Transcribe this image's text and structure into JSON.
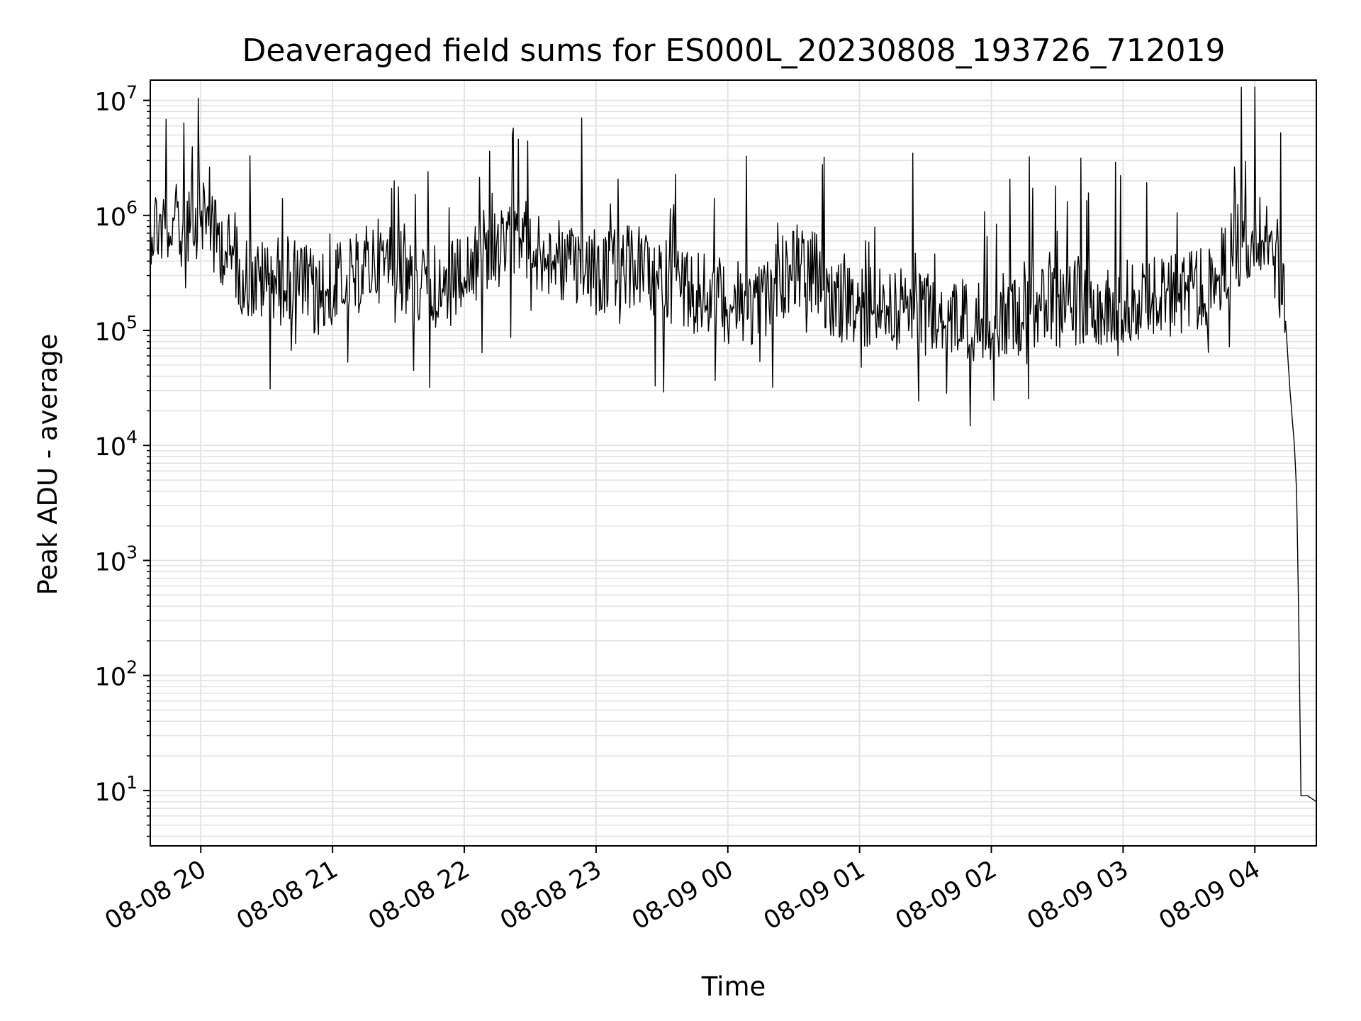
{
  "chart_data": {
    "type": "line",
    "title": "Deaveraged field sums for ES000L_20230808_193726_712019",
    "xlabel": "Time",
    "ylabel": "Peak ADU - average",
    "yscale": "log",
    "ylim": [
      3.3,
      15000000
    ],
    "xlim": [
      "2023-08-08 19:37",
      "2023-08-09 04:28"
    ],
    "grid": true,
    "line_color": "#000000",
    "grid_color": "#e3e3e3",
    "x_ticks": [
      {
        "value": "2023-08-08 20:00",
        "label": "08-08 20"
      },
      {
        "value": "2023-08-08 21:00",
        "label": "08-08 21"
      },
      {
        "value": "2023-08-08 22:00",
        "label": "08-08 22"
      },
      {
        "value": "2023-08-08 23:00",
        "label": "08-08 23"
      },
      {
        "value": "2023-08-09 00:00",
        "label": "08-09 00"
      },
      {
        "value": "2023-08-09 01:00",
        "label": "08-09 01"
      },
      {
        "value": "2023-08-09 02:00",
        "label": "08-09 02"
      },
      {
        "value": "2023-08-09 03:00",
        "label": "08-09 03"
      },
      {
        "value": "2023-08-09 04:00",
        "label": "08-09 04"
      }
    ],
    "y_ticks": [
      {
        "value": 10,
        "base": "10",
        "exp": "1"
      },
      {
        "value": 100,
        "base": "10",
        "exp": "2"
      },
      {
        "value": 1000,
        "base": "10",
        "exp": "3"
      },
      {
        "value": 10000,
        "base": "10",
        "exp": "4"
      },
      {
        "value": 100000,
        "base": "10",
        "exp": "5"
      },
      {
        "value": 1000000,
        "base": "10",
        "exp": "6"
      },
      {
        "value": 10000000,
        "base": "10",
        "exp": "7"
      }
    ],
    "series": [
      {
        "points": [
          [
            "2023-08-08 19:37",
            880000
          ],
          [
            "2023-08-08 19:41",
            820000
          ],
          [
            "2023-08-08 19:45",
            750000
          ],
          [
            "2023-08-08 19:50",
            820000
          ],
          [
            "2023-08-08 19:55",
            950000
          ],
          [
            "2023-08-08 20:00",
            1100000
          ],
          [
            "2023-08-08 20:06",
            750000
          ],
          [
            "2023-08-08 20:12",
            480000
          ],
          [
            "2023-08-08 20:18",
            330000
          ],
          [
            "2023-08-08 20:24",
            260000
          ],
          [
            "2023-08-08 20:30",
            270000
          ],
          [
            "2023-08-08 20:36",
            300000
          ],
          [
            "2023-08-08 20:42",
            290000
          ],
          [
            "2023-08-08 20:48",
            240000
          ],
          [
            "2023-08-08 20:54",
            200000
          ],
          [
            "2023-08-08 21:00",
            230000
          ],
          [
            "2023-08-08 21:10",
            300000
          ],
          [
            "2023-08-08 21:20",
            420000
          ],
          [
            "2023-08-08 21:30",
            300000
          ],
          [
            "2023-08-08 21:40",
            250000
          ],
          [
            "2023-08-08 21:50",
            230000
          ],
          [
            "2023-08-08 22:00",
            300000
          ],
          [
            "2023-08-08 22:10",
            420000
          ],
          [
            "2023-08-08 22:20",
            520000
          ],
          [
            "2023-08-08 22:30",
            480000
          ],
          [
            "2023-08-08 22:40",
            420000
          ],
          [
            "2023-08-08 22:50",
            320000
          ],
          [
            "2023-08-08 23:00",
            300000
          ],
          [
            "2023-08-08 23:10",
            340000
          ],
          [
            "2023-08-08 23:20",
            360000
          ],
          [
            "2023-08-08 23:30",
            280000
          ],
          [
            "2023-08-08 23:40",
            240000
          ],
          [
            "2023-08-08 23:50",
            200000
          ],
          [
            "2023-08-09 00:00",
            180000
          ],
          [
            "2023-08-09 00:10",
            160000
          ],
          [
            "2023-08-09 00:20",
            220000
          ],
          [
            "2023-08-09 00:30",
            380000
          ],
          [
            "2023-08-09 00:40",
            300000
          ],
          [
            "2023-08-09 00:50",
            170000
          ],
          [
            "2023-08-09 01:00",
            150000
          ],
          [
            "2023-08-09 01:10",
            160000
          ],
          [
            "2023-08-09 01:20",
            150000
          ],
          [
            "2023-08-09 01:30",
            140000
          ],
          [
            "2023-08-09 01:40",
            130000
          ],
          [
            "2023-08-09 01:50",
            125000
          ],
          [
            "2023-08-09 02:00",
            130000
          ],
          [
            "2023-08-09 02:10",
            140000
          ],
          [
            "2023-08-09 02:20",
            150000
          ],
          [
            "2023-08-09 02:30",
            160000
          ],
          [
            "2023-08-09 02:40",
            170000
          ],
          [
            "2023-08-09 02:50",
            175000
          ],
          [
            "2023-08-09 03:00",
            180000
          ],
          [
            "2023-08-09 03:10",
            190000
          ],
          [
            "2023-08-09 03:20",
            200000
          ],
          [
            "2023-08-09 03:30",
            210000
          ],
          [
            "2023-08-09 03:40",
            240000
          ],
          [
            "2023-08-09 03:48",
            450000
          ],
          [
            "2023-08-09 03:55",
            600000
          ],
          [
            "2023-08-09 04:00",
            700000
          ],
          [
            "2023-08-09 04:05",
            800000
          ],
          [
            "2023-08-09 04:08",
            650000
          ],
          [
            "2023-08-09 04:11",
            350000
          ],
          [
            "2023-08-09 04:14",
            120000
          ],
          [
            "2023-08-09 04:16",
            30000
          ],
          [
            "2023-08-09 04:18",
            10000
          ],
          [
            "2023-08-09 04:19",
            4000
          ],
          [
            "2023-08-09 04:20",
            300
          ],
          [
            "2023-08-09 04:21",
            9
          ],
          [
            "2023-08-09 04:24",
            9
          ],
          [
            "2023-08-09 04:28",
            8
          ]
        ]
      }
    ]
  }
}
